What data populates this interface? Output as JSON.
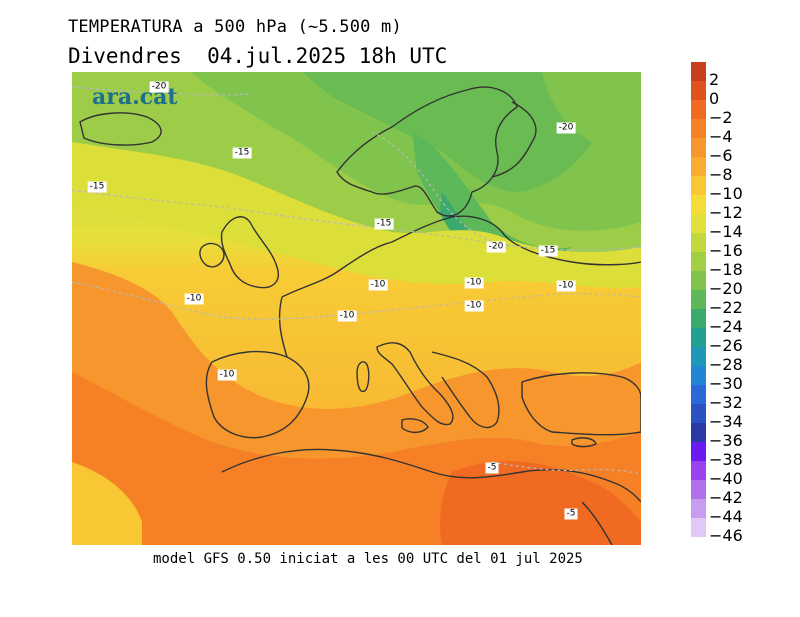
{
  "header": {
    "title": "TEMPERATURA a 500 hPa (~5.500 m)",
    "subtitle": "Divendres  04.jul.2025 18h UTC"
  },
  "map": {
    "brand": "ara.cat",
    "contour_labels": [
      "-20",
      "-20",
      "-15",
      "-15",
      "-15",
      "-20",
      "-15",
      "-10",
      "-10",
      "-10",
      "-10",
      "-10",
      "-10",
      "-10",
      "-5",
      "-5"
    ]
  },
  "footer": "model GFS 0.50 iniciat a les 00 UTC del 01 jul 2025",
  "colorbar": {
    "levels": [
      {
        "label": "2",
        "color": "#c8401c"
      },
      {
        "label": "0",
        "color": "#e0521e"
      },
      {
        "label": "−2",
        "color": "#f06a22"
      },
      {
        "label": "−4",
        "color": "#f58026"
      },
      {
        "label": "−6",
        "color": "#f7962c"
      },
      {
        "label": "−8",
        "color": "#f9ac30"
      },
      {
        "label": "−10",
        "color": "#f9c634"
      },
      {
        "label": "−12",
        "color": "#f5dc38"
      },
      {
        "label": "−14",
        "color": "#e2e03a"
      },
      {
        "label": "−16",
        "color": "#c2d83e"
      },
      {
        "label": "−18",
        "color": "#a2ce46"
      },
      {
        "label": "−20",
        "color": "#80c44e"
      },
      {
        "label": "−22",
        "color": "#5cb858"
      },
      {
        "label": "−24",
        "color": "#3caa6c"
      },
      {
        "label": "−26",
        "color": "#24a090"
      },
      {
        "label": "−28",
        "color": "#1f98b8"
      },
      {
        "label": "−30",
        "color": "#1f86d8"
      },
      {
        "label": "−32",
        "color": "#2a6ad8"
      },
      {
        "label": "−34",
        "color": "#2a52c0"
      },
      {
        "label": "−36",
        "color": "#2a3aa8"
      },
      {
        "label": "−38",
        "color": "#6a1cf0"
      },
      {
        "label": "−40",
        "color": "#9a42f0"
      },
      {
        "label": "−42",
        "color": "#b070ec"
      },
      {
        "label": "−44",
        "color": "#c89cf0"
      },
      {
        "label": "−46",
        "color": "#e2c8f6"
      }
    ]
  }
}
